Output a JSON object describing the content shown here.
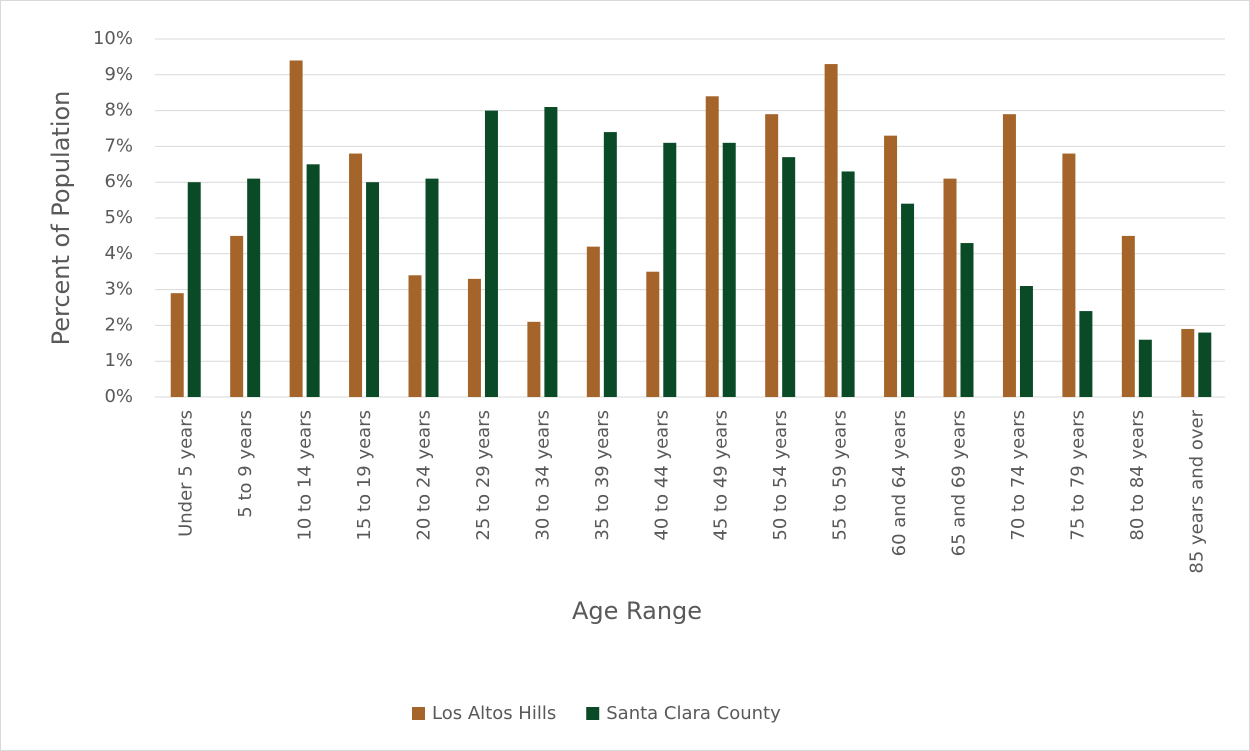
{
  "chart_data": {
    "type": "bar",
    "y_label": "Percent of Population",
    "x_label": "Age Range",
    "categories": [
      "Under 5 years",
      "5 to 9 years",
      "10 to 14 years",
      "15 to 19 years",
      "20 to 24 years",
      "25 to 29 years",
      "30 to 34 years",
      "35 to 39 years",
      "40 to 44 years",
      "45 to 49 years",
      "50 to 54 years",
      "55 to 59 years",
      "60 and 64 years",
      "65 and 69 years",
      "70 to 74 years",
      "75 to 79 years",
      "80 to 84 years",
      "85 years and over"
    ],
    "series": [
      {
        "name": "Los Altos Hills",
        "color": "#a5652a",
        "values": [
          2.9,
          4.5,
          9.4,
          6.8,
          3.4,
          3.3,
          2.1,
          4.2,
          3.5,
          8.4,
          7.9,
          9.3,
          7.3,
          6.1,
          7.9,
          6.8,
          4.5,
          1.9
        ]
      },
      {
        "name": "Santa Clara County",
        "color": "#0b4a26",
        "values": [
          6.0,
          6.1,
          6.5,
          6.0,
          6.1,
          8.0,
          8.1,
          7.4,
          7.1,
          7.1,
          6.7,
          6.3,
          5.4,
          4.3,
          3.1,
          2.4,
          1.6,
          1.8
        ]
      }
    ],
    "ylim": [
      0,
      10
    ],
    "yticks": [
      {
        "value": 0,
        "label": "0%"
      },
      {
        "value": 1,
        "label": "1%"
      },
      {
        "value": 2,
        "label": "2%"
      },
      {
        "value": 3,
        "label": "3%"
      },
      {
        "value": 4,
        "label": "4%"
      },
      {
        "value": 5,
        "label": "5%"
      },
      {
        "value": 6,
        "label": "6%"
      },
      {
        "value": 7,
        "label": "7%"
      },
      {
        "value": 8,
        "label": "8%"
      },
      {
        "value": 9,
        "label": "9%"
      },
      {
        "value": 10,
        "label": "10%"
      }
    ],
    "grid": true,
    "legend": "bottom"
  }
}
